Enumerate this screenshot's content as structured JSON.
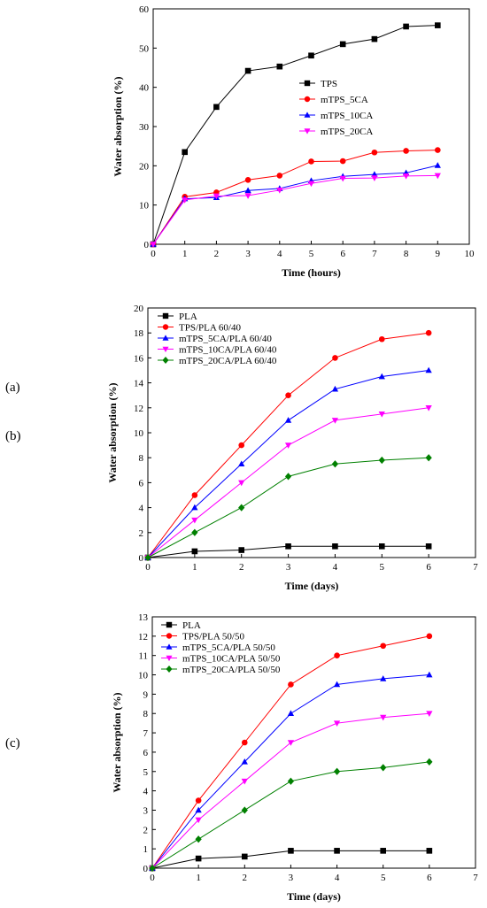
{
  "chart_data": [
    {
      "type": "line",
      "panel_label": "(a)",
      "xlabel": "Time (hours)",
      "ylabel": "Water absorption (%)",
      "xlim": [
        0,
        10
      ],
      "ylim": [
        0,
        60
      ],
      "xticks": [
        0,
        1,
        2,
        3,
        4,
        5,
        6,
        7,
        8,
        9,
        10
      ],
      "yticks": [
        0,
        10,
        20,
        30,
        40,
        50,
        60
      ],
      "legend": "center-right",
      "grid": false,
      "x": [
        0,
        1,
        2,
        3,
        4,
        5,
        6,
        7,
        8,
        9
      ],
      "series": [
        {
          "name": "TPS",
          "color": "#000000",
          "marker": "square",
          "values": [
            0,
            23.5,
            35,
            44.2,
            45.3,
            48.1,
            51,
            52.3,
            55.5,
            55.8
          ]
        },
        {
          "name": "mTPS_5CA",
          "color": "#ff0000",
          "marker": "circle",
          "values": [
            0,
            12.1,
            13.2,
            16.4,
            17.5,
            21.1,
            21.2,
            23.4,
            23.8,
            24
          ]
        },
        {
          "name": "mTPS_10CA",
          "color": "#0000ff",
          "marker": "triangle-up",
          "values": [
            0,
            11.6,
            11.9,
            13.7,
            14.2,
            16.2,
            17.3,
            17.8,
            18.2,
            20.1
          ]
        },
        {
          "name": "mTPS_20CA",
          "color": "#ff00ff",
          "marker": "triangle-down",
          "values": [
            0,
            11.3,
            12.3,
            12.4,
            13.8,
            15.5,
            16.8,
            16.9,
            17.4,
            17.5
          ]
        }
      ]
    },
    {
      "type": "line",
      "panel_label": "(b)",
      "xlabel": "Time (days)",
      "ylabel": "Water absorption (%)",
      "xlim": [
        0,
        7
      ],
      "ylim": [
        0,
        20
      ],
      "xticks": [
        0,
        1,
        2,
        3,
        4,
        5,
        6,
        7
      ],
      "yticks": [
        0,
        2,
        4,
        6,
        8,
        10,
        12,
        14,
        16,
        18,
        20
      ],
      "legend": "top-left",
      "grid": false,
      "x": [
        0,
        1,
        2,
        3,
        4,
        5,
        6
      ],
      "series": [
        {
          "name": "PLA",
          "color": "#000000",
          "marker": "square",
          "values": [
            0,
            0.5,
            0.6,
            0.9,
            0.9,
            0.9,
            0.9
          ]
        },
        {
          "name": "TPS/PLA 60/40",
          "color": "#ff0000",
          "marker": "circle",
          "values": [
            0,
            5,
            9,
            13,
            16,
            17.5,
            18
          ]
        },
        {
          "name": "mTPS_5CA/PLA 60/40",
          "color": "#0000ff",
          "marker": "triangle-up",
          "values": [
            0,
            4,
            7.5,
            11,
            13.5,
            14.5,
            15
          ]
        },
        {
          "name": "mTPS_10CA/PLA 60/40",
          "color": "#ff00ff",
          "marker": "triangle-down",
          "values": [
            0,
            3,
            6,
            9,
            11,
            11.5,
            12
          ]
        },
        {
          "name": "mTPS_20CA/PLA 60/40",
          "color": "#008000",
          "marker": "diamond",
          "values": [
            0,
            2,
            4,
            6.5,
            7.5,
            7.8,
            8
          ]
        }
      ]
    },
    {
      "type": "line",
      "panel_label": "(c)",
      "xlabel": "Time (days)",
      "ylabel": "Water absorption (%)",
      "xlim": [
        0,
        7
      ],
      "ylim": [
        0,
        13
      ],
      "xticks": [
        0,
        1,
        2,
        3,
        4,
        5,
        6,
        7
      ],
      "yticks": [
        0,
        1,
        2,
        3,
        4,
        5,
        6,
        7,
        8,
        9,
        10,
        11,
        12,
        13
      ],
      "legend": "top-left",
      "grid": false,
      "x": [
        0,
        1,
        2,
        3,
        4,
        5,
        6
      ],
      "series": [
        {
          "name": "PLA",
          "color": "#000000",
          "marker": "square",
          "values": [
            0,
            0.5,
            0.6,
            0.9,
            0.9,
            0.9,
            0.9
          ]
        },
        {
          "name": "TPS/PLA 50/50",
          "color": "#ff0000",
          "marker": "circle",
          "values": [
            0,
            3.5,
            6.5,
            9.5,
            11,
            11.5,
            12
          ]
        },
        {
          "name": "mTPS_5CA/PLA 50/50",
          "color": "#0000ff",
          "marker": "triangle-up",
          "values": [
            0,
            3,
            5.5,
            8,
            9.5,
            9.8,
            10
          ]
        },
        {
          "name": "mTPS_10CA/PLA 50/50",
          "color": "#ff00ff",
          "marker": "triangle-down",
          "values": [
            0,
            2.5,
            4.5,
            6.5,
            7.5,
            7.8,
            8
          ]
        },
        {
          "name": "mTPS_20CA/PLA 50/50",
          "color": "#008000",
          "marker": "diamond",
          "values": [
            0,
            1.5,
            3,
            4.5,
            5,
            5.2,
            5.5
          ]
        }
      ]
    }
  ]
}
